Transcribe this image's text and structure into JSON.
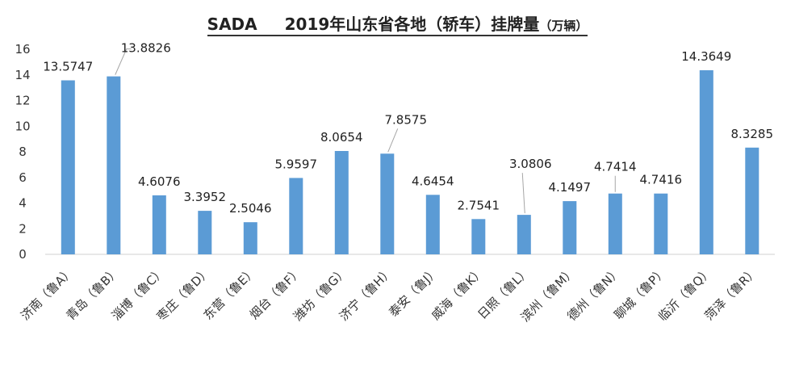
{
  "chart_data": {
    "type": "bar",
    "title_brand": "SADA",
    "title": "2019年山东省各地（轿车）挂牌量",
    "title_unit": "（万辆）",
    "categories": [
      "济南（鲁A）",
      "青岛（鲁B）",
      "淄博（鲁C）",
      "枣庄（鲁D）",
      "东营（鲁E）",
      "烟台（鲁F）",
      "潍坊（鲁G）",
      "济宁（鲁H）",
      "泰安（鲁J）",
      "威海（鲁K）",
      "日照（鲁L）",
      "滨州（鲁M）",
      "德州（鲁N）",
      "聊城（鲁P）",
      "临沂（鲁Q）",
      "菏泽（鲁R）"
    ],
    "values": [
      13.5747,
      13.8826,
      4.6076,
      3.3952,
      2.5046,
      5.9597,
      8.0654,
      7.8575,
      4.6454,
      2.7541,
      3.0806,
      4.1497,
      4.7414,
      4.7416,
      14.3649,
      8.3285
    ],
    "value_labels": [
      "13.5747",
      "13.8826",
      "4.6076",
      "3.3952",
      "2.5046",
      "5.9597",
      "8.0654",
      "7.8575",
      "4.6454",
      "2.7541",
      "3.0806",
      "4.1497",
      "4.7414",
      "4.7416",
      "14.3649",
      "8.3285"
    ],
    "yticks": [
      "0",
      "2",
      "4",
      "6",
      "8",
      "10",
      "12",
      "14",
      "16"
    ],
    "ylim": [
      0,
      16
    ],
    "grid": false,
    "legend": "none",
    "bar_color": "#5b9bd5"
  }
}
